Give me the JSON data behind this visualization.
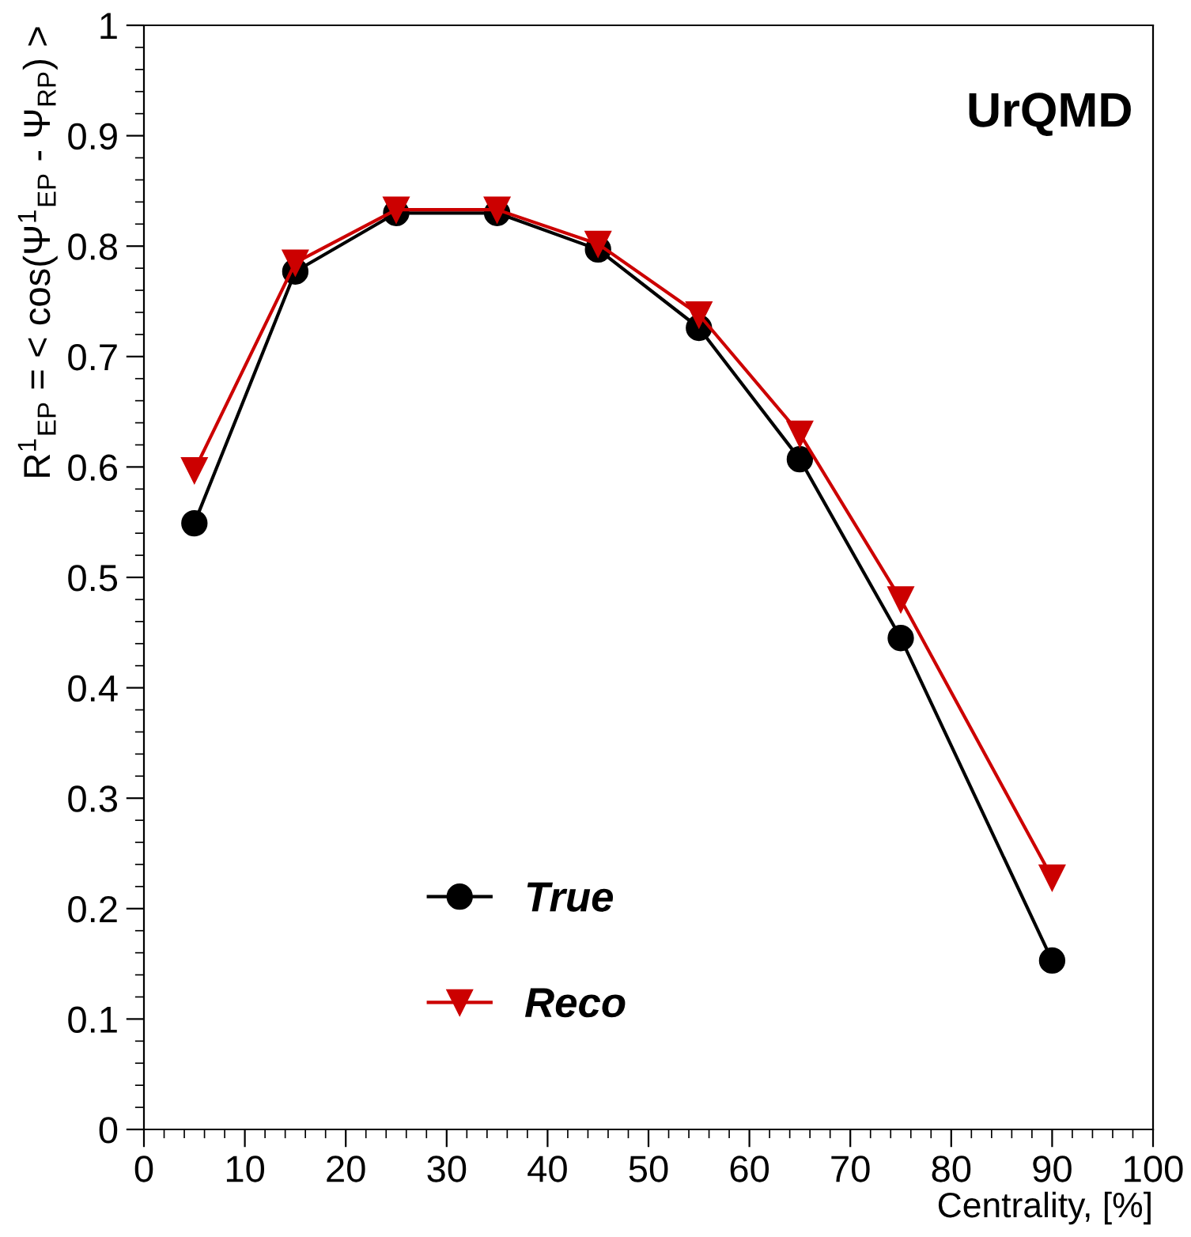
{
  "chart_data": {
    "type": "line",
    "xlabel": "Centrality, [%]",
    "ylabel": "R$^{1}$$_{EP}$ = < cos(Ψ$^{1}$$_{EP}$ - Ψ$_{RP}$) >",
    "annotations": [
      "UrQMD"
    ],
    "x": [
      5,
      15,
      25,
      35,
      45,
      55,
      65,
      75,
      90
    ],
    "series": [
      {
        "name": "True",
        "color": "#000000",
        "marker": "circle",
        "values": [
          0.549,
          0.777,
          0.83,
          0.83,
          0.797,
          0.726,
          0.607,
          0.445,
          0.153
        ]
      },
      {
        "name": "Reco",
        "color": "#cc0000",
        "marker": "triangle",
        "values": [
          0.597,
          0.785,
          0.833,
          0.833,
          0.802,
          0.738,
          0.63,
          0.48,
          0.228
        ]
      }
    ],
    "xlim": [
      0,
      100
    ],
    "xticks": [
      0,
      10,
      20,
      30,
      40,
      50,
      60,
      70,
      80,
      90,
      100
    ],
    "ylim": [
      0,
      1
    ],
    "yticks": [
      0,
      0.1,
      0.2,
      0.3,
      0.4,
      0.5,
      0.6,
      0.7,
      0.8,
      0.9,
      1
    ],
    "grid": false,
    "legend": "bottom",
    "line_style": "solid"
  }
}
